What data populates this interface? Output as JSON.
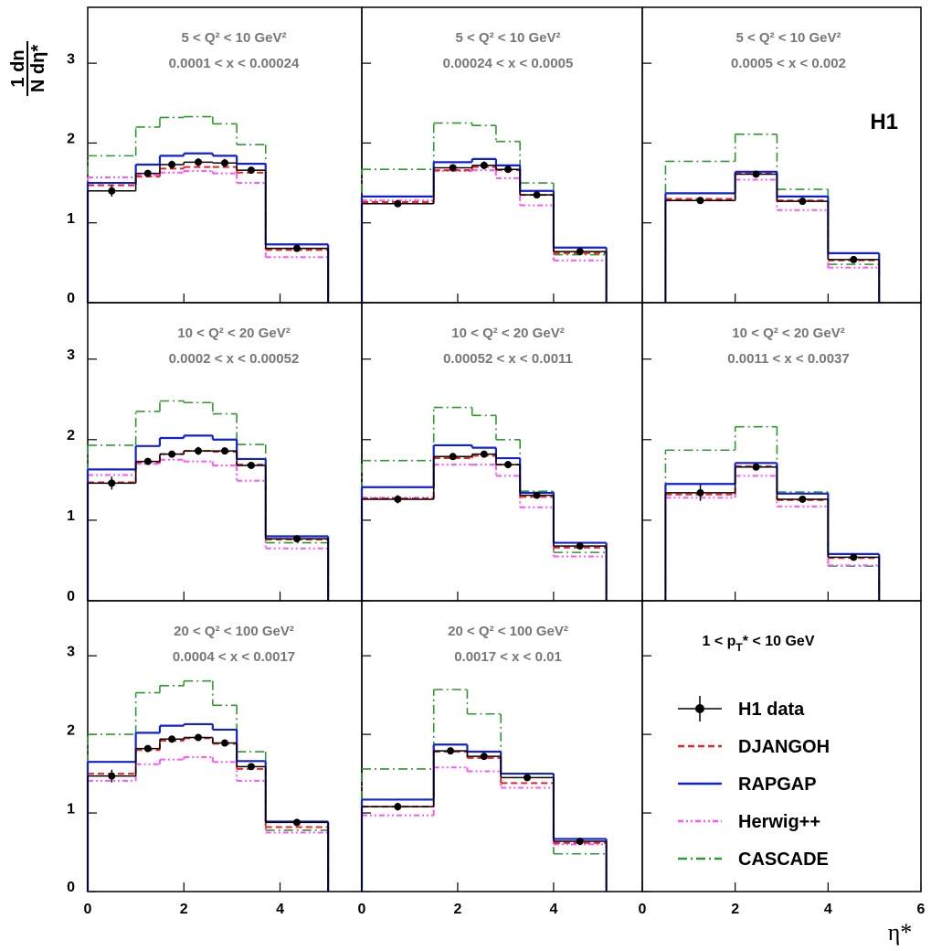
{
  "chart_data": [
    {
      "type": "histogram",
      "title": "5  < Q² < 10 GeV²",
      "subtitle": "0.0001 < x  < 0.00024",
      "bins": [
        0,
        1,
        1.5,
        2,
        2.6,
        3.1,
        3.7,
        5
      ],
      "xlim": [
        0,
        5.7
      ],
      "xticks": [
        0,
        2,
        4
      ],
      "ylim": [
        0,
        3.7
      ],
      "yticks": [
        0,
        1,
        2,
        3
      ],
      "series": [
        {
          "name": "CASCADE",
          "color": "#2e9a2e",
          "style": "dashdot",
          "values": [
            1.84,
            2.2,
            2.32,
            2.33,
            2.24,
            1.98,
            0.68
          ]
        },
        {
          "name": "Herwig++",
          "color": "#ff55ff",
          "style": "dashdotdot",
          "values": [
            1.57,
            1.6,
            1.63,
            1.65,
            1.62,
            1.5,
            0.57
          ]
        },
        {
          "name": "DJANGOH",
          "color": "#ee2222",
          "style": "dashed",
          "values": [
            1.47,
            1.58,
            1.68,
            1.7,
            1.7,
            1.63,
            0.66
          ]
        },
        {
          "name": "RAPGAP",
          "color": "#1020d8",
          "style": "solid",
          "values": [
            1.5,
            1.73,
            1.84,
            1.87,
            1.84,
            1.74,
            0.73
          ]
        },
        {
          "name": "H1 data",
          "color": "#000000",
          "style": "data",
          "values": [
            1.4,
            1.62,
            1.73,
            1.76,
            1.75,
            1.66,
            0.68
          ],
          "errors": [
            0.07,
            0.04,
            0.05,
            0.05,
            0.05,
            0.03,
            0.02
          ]
        }
      ]
    },
    {
      "type": "histogram",
      "title": "5  < Q² < 10 GeV²",
      "subtitle": "0.00024 < x  < 0.0005",
      "bins": [
        0,
        1.5,
        2.3,
        2.8,
        3.3,
        4,
        5.1
      ],
      "xlim": [
        0,
        5.85
      ],
      "xticks": [
        0,
        2,
        4
      ],
      "ylim": [
        0,
        3.7
      ],
      "yticks": [
        0,
        1,
        2,
        3
      ],
      "series": [
        {
          "name": "CASCADE",
          "color": "#2e9a2e",
          "style": "dashdot",
          "values": [
            1.67,
            2.25,
            2.22,
            2.02,
            1.5,
            0.6
          ]
        },
        {
          "name": "Herwig++",
          "color": "#ff55ff",
          "style": "dashdotdot",
          "values": [
            1.28,
            1.65,
            1.66,
            1.56,
            1.22,
            0.53
          ]
        },
        {
          "name": "DJANGOH",
          "color": "#ee2222",
          "style": "dashed",
          "values": [
            1.26,
            1.66,
            1.7,
            1.66,
            1.35,
            0.62
          ]
        },
        {
          "name": "RAPGAP",
          "color": "#1020d8",
          "style": "solid",
          "values": [
            1.33,
            1.76,
            1.8,
            1.72,
            1.4,
            0.69
          ]
        },
        {
          "name": "H1 data",
          "color": "#000000",
          "style": "data",
          "values": [
            1.24,
            1.69,
            1.72,
            1.67,
            1.35,
            0.64
          ],
          "errors": [
            0.04,
            0.04,
            0.05,
            0.04,
            0.03,
            0.02
          ]
        }
      ]
    },
    {
      "type": "histogram",
      "title": "5  < Q² < 10 GeV²",
      "subtitle": "0.0005 < x < 0.002",
      "annotation": "H1",
      "bins": [
        0.5,
        2,
        2.9,
        4,
        5.1
      ],
      "xlim": [
        0,
        6
      ],
      "xticks": [
        0,
        2,
        4,
        6
      ],
      "ylim": [
        0,
        3.7
      ],
      "yticks": [
        0,
        1,
        2,
        3
      ],
      "series": [
        {
          "name": "CASCADE",
          "color": "#2e9a2e",
          "style": "dashdot",
          "values": [
            1.77,
            2.11,
            1.42,
            0.48
          ]
        },
        {
          "name": "Herwig++",
          "color": "#ff55ff",
          "style": "dashdotdot",
          "values": [
            1.28,
            1.54,
            1.16,
            0.44
          ]
        },
        {
          "name": "DJANGOH",
          "color": "#ee2222",
          "style": "dashed",
          "values": [
            1.3,
            1.62,
            1.28,
            0.53
          ]
        },
        {
          "name": "RAPGAP",
          "color": "#1020d8",
          "style": "solid",
          "values": [
            1.37,
            1.64,
            1.33,
            0.62
          ]
        },
        {
          "name": "H1 data",
          "color": "#000000",
          "style": "data",
          "values": [
            1.28,
            1.61,
            1.27,
            0.54
          ],
          "errors": [
            0.04,
            0.03,
            0.03,
            0.02
          ]
        }
      ]
    },
    {
      "type": "histogram",
      "title": "10 < Q² < 20 GeV²",
      "subtitle": "0.0002 < x  < 0.00052",
      "bins": [
        0,
        1,
        1.5,
        2,
        2.6,
        3.1,
        3.7,
        5
      ],
      "xlim": [
        0,
        5.7
      ],
      "xticks": [
        0,
        2,
        4
      ],
      "ylim": [
        0,
        3.7
      ],
      "yticks": [
        0,
        1,
        2,
        3
      ],
      "series": [
        {
          "name": "CASCADE",
          "color": "#2e9a2e",
          "style": "dashdot",
          "values": [
            1.93,
            2.35,
            2.48,
            2.46,
            2.32,
            1.94,
            0.72
          ]
        },
        {
          "name": "Herwig++",
          "color": "#ff55ff",
          "style": "dashdotdot",
          "values": [
            1.56,
            1.7,
            1.75,
            1.73,
            1.68,
            1.49,
            0.65
          ]
        },
        {
          "name": "DJANGOH",
          "color": "#ee2222",
          "style": "dashed",
          "values": [
            1.47,
            1.72,
            1.82,
            1.86,
            1.85,
            1.69,
            0.76
          ]
        },
        {
          "name": "RAPGAP",
          "color": "#1020d8",
          "style": "solid",
          "values": [
            1.63,
            1.92,
            2.02,
            2.05,
            2.0,
            1.76,
            0.8
          ]
        },
        {
          "name": "H1 data",
          "color": "#000000",
          "style": "data",
          "values": [
            1.46,
            1.73,
            1.82,
            1.86,
            1.86,
            1.68,
            0.77
          ],
          "errors": [
            0.08,
            0.03,
            0.04,
            0.05,
            0.04,
            0.03,
            0.02
          ]
        }
      ]
    },
    {
      "type": "histogram",
      "title": "10 < Q²  < 20 GeV²",
      "subtitle": "0.00052 < x  < 0.0011",
      "bins": [
        0,
        1.5,
        2.3,
        2.8,
        3.3,
        4,
        5.1
      ],
      "xlim": [
        0,
        5.85
      ],
      "xticks": [
        0,
        2,
        4
      ],
      "ylim": [
        0,
        3.7
      ],
      "yticks": [
        0,
        1,
        2,
        3
      ],
      "series": [
        {
          "name": "CASCADE",
          "color": "#2e9a2e",
          "style": "dashdot",
          "values": [
            1.74,
            2.4,
            2.3,
            2.0,
            1.36,
            0.6
          ]
        },
        {
          "name": "Herwig++",
          "color": "#ff55ff",
          "style": "dashdotdot",
          "values": [
            1.28,
            1.69,
            1.69,
            1.55,
            1.16,
            0.55
          ]
        },
        {
          "name": "DJANGOH",
          "color": "#ee2222",
          "style": "dashed",
          "values": [
            1.27,
            1.77,
            1.8,
            1.69,
            1.29,
            0.66
          ]
        },
        {
          "name": "RAPGAP",
          "color": "#1020d8",
          "style": "solid",
          "values": [
            1.41,
            1.93,
            1.9,
            1.77,
            1.34,
            0.72
          ]
        },
        {
          "name": "H1 data",
          "color": "#000000",
          "style": "data",
          "values": [
            1.26,
            1.79,
            1.82,
            1.69,
            1.31,
            0.68
          ],
          "errors": [
            0.05,
            0.04,
            0.04,
            0.04,
            0.04,
            0.02
          ]
        }
      ]
    },
    {
      "type": "histogram",
      "title": "10 < Q² < 20 GeV²",
      "subtitle": "0.0011 < x < 0.0037",
      "bins": [
        0.5,
        2,
        2.9,
        4,
        5.1
      ],
      "xlim": [
        0,
        6
      ],
      "xticks": [
        0,
        2,
        4,
        6
      ],
      "ylim": [
        0,
        3.7
      ],
      "yticks": [
        0,
        1,
        2,
        3
      ],
      "series": [
        {
          "name": "CASCADE",
          "color": "#2e9a2e",
          "style": "dashdot",
          "values": [
            1.87,
            2.16,
            1.35,
            0.43
          ]
        },
        {
          "name": "Herwig++",
          "color": "#ff55ff",
          "style": "dashdotdot",
          "values": [
            1.28,
            1.55,
            1.17,
            0.44
          ]
        },
        {
          "name": "DJANGOH",
          "color": "#ee2222",
          "style": "dashed",
          "values": [
            1.32,
            1.67,
            1.25,
            0.53
          ]
        },
        {
          "name": "RAPGAP",
          "color": "#1020d8",
          "style": "solid",
          "values": [
            1.45,
            1.71,
            1.33,
            0.58
          ]
        },
        {
          "name": "H1 data",
          "color": "#000000",
          "style": "data",
          "values": [
            1.34,
            1.66,
            1.26,
            0.54
          ],
          "errors": [
            0.1,
            0.03,
            0.03,
            0.02
          ]
        }
      ]
    },
    {
      "type": "histogram",
      "title": "20 < Q²  < 100 GeV²",
      "subtitle": "0.0004 < x < 0.0017",
      "bins": [
        0,
        1,
        1.5,
        2,
        2.6,
        3.1,
        3.7,
        5
      ],
      "xlim": [
        0,
        5.7
      ],
      "xticks": [
        0,
        2,
        4
      ],
      "ylim": [
        0,
        3.7
      ],
      "yticks": [
        0,
        1,
        2,
        3
      ],
      "series": [
        {
          "name": "CASCADE",
          "color": "#2e9a2e",
          "style": "dashdot",
          "values": [
            2.0,
            2.53,
            2.62,
            2.68,
            2.37,
            1.78,
            0.78
          ]
        },
        {
          "name": "Herwig++",
          "color": "#ff55ff",
          "style": "dashdotdot",
          "values": [
            1.41,
            1.62,
            1.68,
            1.71,
            1.65,
            1.41,
            0.75
          ]
        },
        {
          "name": "DJANGOH",
          "color": "#ee2222",
          "style": "dashed",
          "values": [
            1.5,
            1.8,
            1.92,
            1.95,
            1.88,
            1.56,
            0.82
          ]
        },
        {
          "name": "RAPGAP",
          "color": "#1020d8",
          "style": "solid",
          "values": [
            1.65,
            2.02,
            2.11,
            2.13,
            2.06,
            1.66,
            0.89
          ]
        },
        {
          "name": "H1 data",
          "color": "#000000",
          "style": "data",
          "values": [
            1.47,
            1.82,
            1.94,
            1.96,
            1.89,
            1.59,
            0.88
          ],
          "errors": [
            0.08,
            0.04,
            0.03,
            0.03,
            0.03,
            0.03,
            0.02
          ]
        }
      ]
    },
    {
      "type": "histogram",
      "title": "20 < Q²  < 100 GeV²",
      "subtitle": "0.0017 < x < 0.01",
      "bins": [
        0,
        1.5,
        2.2,
        2.9,
        4,
        5.1
      ],
      "xlim": [
        0,
        5.85
      ],
      "xticks": [
        0,
        2,
        4
      ],
      "ylim": [
        0,
        3.7
      ],
      "yticks": [
        0,
        1,
        2,
        3
      ],
      "series": [
        {
          "name": "CASCADE",
          "color": "#2e9a2e",
          "style": "dashdot",
          "values": [
            1.56,
            2.57,
            2.26,
            1.5,
            0.48
          ]
        },
        {
          "name": "Herwig++",
          "color": "#ff55ff",
          "style": "dashdotdot",
          "values": [
            0.97,
            1.58,
            1.53,
            1.32,
            0.6
          ]
        },
        {
          "name": "DJANGOH",
          "color": "#ee2222",
          "style": "dashed",
          "values": [
            1.08,
            1.78,
            1.7,
            1.38,
            0.62
          ]
        },
        {
          "name": "RAPGAP",
          "color": "#1020d8",
          "style": "solid",
          "values": [
            1.17,
            1.87,
            1.78,
            1.5,
            0.67
          ]
        },
        {
          "name": "H1 data",
          "color": "#000000",
          "style": "data",
          "values": [
            1.08,
            1.79,
            1.72,
            1.45,
            0.64
          ],
          "errors": [
            0.05,
            0.03,
            0.03,
            0.03,
            0.02
          ]
        }
      ]
    }
  ],
  "legend_panel": {
    "cut": {
      "pre": "1 < p",
      "sub": "T",
      "post": "* < 10 GeV"
    },
    "xlim": [
      0,
      6
    ],
    "xticks": [
      0,
      2,
      4,
      6
    ],
    "ylim": [
      0,
      3.7
    ],
    "yticks": [
      0,
      1,
      2,
      3
    ]
  },
  "x_label": "η*",
  "y_label": {
    "numerator": "1 dn",
    "denominator": "N dη*"
  }
}
